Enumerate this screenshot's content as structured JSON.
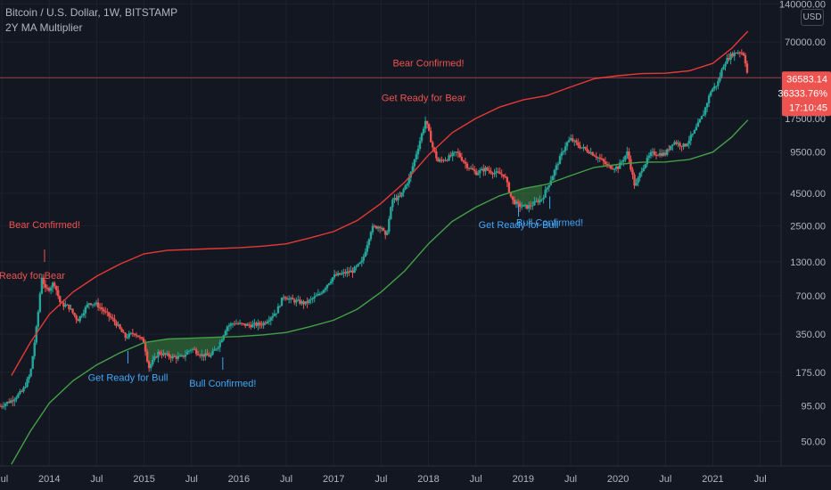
{
  "header": {
    "symbol": "Bitcoin / U.S. Dollar, 1W, BITSTAMP",
    "indicator": "2Y MA Multiplier",
    "currency": "USD"
  },
  "colors": {
    "background": "#131722",
    "grid": "#1e2230",
    "up": "#26a69a",
    "down": "#ef5350",
    "ma": "#43a047",
    "ma_x5": "#e53935",
    "bear_text": "#ef5350",
    "bull_text": "#42a5f5"
  },
  "price_box": {
    "last": "36583.14",
    "pct": "36333.76%",
    "countdown": "17:10:45"
  },
  "chart_data": {
    "type": "line",
    "yscale": "log",
    "ylim": [
      32,
      150000
    ],
    "y_ticks": [
      {
        "v": 140000,
        "t": "140000.00"
      },
      {
        "v": 70000,
        "t": "70000.00"
      },
      {
        "v": 36583.14,
        "t": "36583.14"
      },
      {
        "v": 17500,
        "t": "17500.00"
      },
      {
        "v": 9500,
        "t": "9500.00"
      },
      {
        "v": 4500,
        "t": "4500.00"
      },
      {
        "v": 2500,
        "t": "2500.00"
      },
      {
        "v": 1300,
        "t": "1300.00"
      },
      {
        "v": 700,
        "t": "700.00"
      },
      {
        "v": 350,
        "t": "350.00"
      },
      {
        "v": 175,
        "t": "175.00"
      },
      {
        "v": 95,
        "t": "95.00"
      },
      {
        "v": 50,
        "t": "50.00"
      }
    ],
    "xlim": [
      2013.48,
      2021.72
    ],
    "x_ticks": [
      {
        "v": 2013.5,
        "t": "Jul"
      },
      {
        "v": 2014.0,
        "t": "2014"
      },
      {
        "v": 2014.5,
        "t": "Jul"
      },
      {
        "v": 2015.0,
        "t": "2015"
      },
      {
        "v": 2015.5,
        "t": "Jul"
      },
      {
        "v": 2016.0,
        "t": "2016"
      },
      {
        "v": 2016.5,
        "t": "Jul"
      },
      {
        "v": 2017.0,
        "t": "2017"
      },
      {
        "v": 2017.5,
        "t": "Jul"
      },
      {
        "v": 2018.0,
        "t": "2018"
      },
      {
        "v": 2018.5,
        "t": "Jul"
      },
      {
        "v": 2019.0,
        "t": "2019"
      },
      {
        "v": 2019.5,
        "t": "Jul"
      },
      {
        "v": 2020.0,
        "t": "2020"
      },
      {
        "v": 2020.5,
        "t": "Jul"
      },
      {
        "v": 2021.0,
        "t": "2021"
      },
      {
        "v": 2021.5,
        "t": "Jul"
      }
    ],
    "price_path": [
      [
        2013.48,
        95
      ],
      [
        2013.6,
        105
      ],
      [
        2013.72,
        125
      ],
      [
        2013.8,
        170
      ],
      [
        2013.87,
        420
      ],
      [
        2013.92,
        1000
      ],
      [
        2013.96,
        780
      ],
      [
        2014.0,
        800
      ],
      [
        2014.05,
        900
      ],
      [
        2014.12,
        600
      ],
      [
        2014.2,
        580
      ],
      [
        2014.3,
        450
      ],
      [
        2014.42,
        620
      ],
      [
        2014.5,
        600
      ],
      [
        2014.6,
        510
      ],
      [
        2014.7,
        430
      ],
      [
        2014.8,
        330
      ],
      [
        2014.9,
        360
      ],
      [
        2015.0,
        300
      ],
      [
        2015.05,
        190
      ],
      [
        2015.15,
        250
      ],
      [
        2015.3,
        230
      ],
      [
        2015.4,
        230
      ],
      [
        2015.5,
        270
      ],
      [
        2015.6,
        240
      ],
      [
        2015.7,
        235
      ],
      [
        2015.8,
        300
      ],
      [
        2015.87,
        400
      ],
      [
        2015.95,
        430
      ],
      [
        2016.0,
        420
      ],
      [
        2016.1,
        410
      ],
      [
        2016.25,
        420
      ],
      [
        2016.4,
        530
      ],
      [
        2016.47,
        700
      ],
      [
        2016.55,
        650
      ],
      [
        2016.7,
        610
      ],
      [
        2016.85,
        720
      ],
      [
        2016.95,
        900
      ],
      [
        2017.0,
        1000
      ],
      [
        2017.1,
        1050
      ],
      [
        2017.2,
        1100
      ],
      [
        2017.3,
        1300
      ],
      [
        2017.4,
        2400
      ],
      [
        2017.5,
        2500
      ],
      [
        2017.55,
        2000
      ],
      [
        2017.62,
        4000
      ],
      [
        2017.7,
        4200
      ],
      [
        2017.8,
        6000
      ],
      [
        2017.9,
        11000
      ],
      [
        2017.97,
        17000
      ],
      [
        2018.0,
        14000
      ],
      [
        2018.05,
        10000
      ],
      [
        2018.1,
        8000
      ],
      [
        2018.2,
        8500
      ],
      [
        2018.3,
        9500
      ],
      [
        2018.4,
        7500
      ],
      [
        2018.5,
        6500
      ],
      [
        2018.6,
        7000
      ],
      [
        2018.7,
        6500
      ],
      [
        2018.8,
        6300
      ],
      [
        2018.88,
        4000
      ],
      [
        2018.95,
        3600
      ],
      [
        2019.05,
        3500
      ],
      [
        2019.2,
        4100
      ],
      [
        2019.3,
        6000
      ],
      [
        2019.45,
        11000
      ],
      [
        2019.5,
        12000
      ],
      [
        2019.6,
        10500
      ],
      [
        2019.7,
        9600
      ],
      [
        2019.8,
        8500
      ],
      [
        2019.9,
        7300
      ],
      [
        2020.0,
        7200
      ],
      [
        2020.1,
        9500
      ],
      [
        2020.18,
        5000
      ],
      [
        2020.25,
        7000
      ],
      [
        2020.35,
        9300
      ],
      [
        2020.5,
        9200
      ],
      [
        2020.58,
        11500
      ],
      [
        2020.7,
        10600
      ],
      [
        2020.8,
        13500
      ],
      [
        2020.9,
        19000
      ],
      [
        2020.98,
        29000
      ],
      [
        2021.05,
        33000
      ],
      [
        2021.12,
        48000
      ],
      [
        2021.2,
        56000
      ],
      [
        2021.28,
        59000
      ],
      [
        2021.33,
        56000
      ],
      [
        2021.37,
        37000
      ]
    ],
    "series": [
      {
        "name": "2Y MA",
        "points": [
          [
            2013.6,
            33
          ],
          [
            2013.8,
            60
          ],
          [
            2014.0,
            100
          ],
          [
            2014.25,
            150
          ],
          [
            2014.5,
            200
          ],
          [
            2014.75,
            250
          ],
          [
            2015.0,
            300
          ],
          [
            2015.25,
            320
          ],
          [
            2015.5,
            325
          ],
          [
            2015.75,
            330
          ],
          [
            2016.0,
            335
          ],
          [
            2016.25,
            345
          ],
          [
            2016.5,
            360
          ],
          [
            2016.75,
            400
          ],
          [
            2017.0,
            450
          ],
          [
            2017.25,
            550
          ],
          [
            2017.5,
            750
          ],
          [
            2017.75,
            1100
          ],
          [
            2018.0,
            1800
          ],
          [
            2018.25,
            2700
          ],
          [
            2018.5,
            3500
          ],
          [
            2018.75,
            4300
          ],
          [
            2019.0,
            4900
          ],
          [
            2019.25,
            5300
          ],
          [
            2019.5,
            6200
          ],
          [
            2019.75,
            7200
          ],
          [
            2020.0,
            7600
          ],
          [
            2020.25,
            7900
          ],
          [
            2020.5,
            7950
          ],
          [
            2020.75,
            8300
          ],
          [
            2021.0,
            9500
          ],
          [
            2021.2,
            12500
          ],
          [
            2021.3,
            15000
          ],
          [
            2021.37,
            17000
          ]
        ]
      },
      {
        "name": "2Y MA x5",
        "points": [
          [
            2013.6,
            165
          ],
          [
            2013.8,
            300
          ],
          [
            2014.0,
            500
          ],
          [
            2014.25,
            750
          ],
          [
            2014.5,
            1000
          ],
          [
            2014.75,
            1250
          ],
          [
            2015.0,
            1500
          ],
          [
            2015.25,
            1600
          ],
          [
            2015.5,
            1625
          ],
          [
            2015.75,
            1650
          ],
          [
            2016.0,
            1675
          ],
          [
            2016.25,
            1725
          ],
          [
            2016.5,
            1800
          ],
          [
            2016.75,
            2000
          ],
          [
            2017.0,
            2250
          ],
          [
            2017.25,
            2750
          ],
          [
            2017.5,
            3750
          ],
          [
            2017.75,
            5500
          ],
          [
            2018.0,
            9000
          ],
          [
            2018.25,
            13500
          ],
          [
            2018.5,
            17500
          ],
          [
            2018.75,
            21500
          ],
          [
            2019.0,
            24500
          ],
          [
            2019.25,
            26500
          ],
          [
            2019.5,
            31000
          ],
          [
            2019.75,
            36000
          ],
          [
            2020.0,
            38000
          ],
          [
            2020.25,
            39500
          ],
          [
            2020.5,
            39750
          ],
          [
            2020.75,
            41500
          ],
          [
            2021.0,
            47500
          ],
          [
            2021.2,
            62500
          ],
          [
            2021.3,
            75000
          ],
          [
            2021.37,
            85000
          ]
        ]
      }
    ],
    "annotations": [
      {
        "text": "Bear Confirmed!",
        "x": 2013.95,
        "y": 2400,
        "kind": "bear",
        "tick_y": 1450
      },
      {
        "text": "Get Ready for Bear",
        "x": 2013.72,
        "y": 950,
        "kind": "bear",
        "tick_y": 0
      },
      {
        "text": "Get Ready for Bull",
        "x": 2014.83,
        "y": 150,
        "kind": "bull",
        "tick_y": 230
      },
      {
        "text": "Bull Confirmed!",
        "x": 2015.83,
        "y": 135,
        "kind": "bull",
        "tick_y": 205
      },
      {
        "text": "Bear Confirmed!",
        "x": 2018.0,
        "y": 45000,
        "kind": "bear",
        "tick_y": 0
      },
      {
        "text": "Get Ready for Bear",
        "x": 2017.95,
        "y": 24000,
        "kind": "bear",
        "tick_y": 0
      },
      {
        "text": "Get Ready for Bull",
        "x": 2018.95,
        "y": 2400,
        "kind": "bull",
        "tick_y": 3300
      },
      {
        "text": "Bull Confirmed!",
        "x": 2019.28,
        "y": 2500,
        "kind": "bull",
        "tick_y": 3800
      }
    ]
  }
}
